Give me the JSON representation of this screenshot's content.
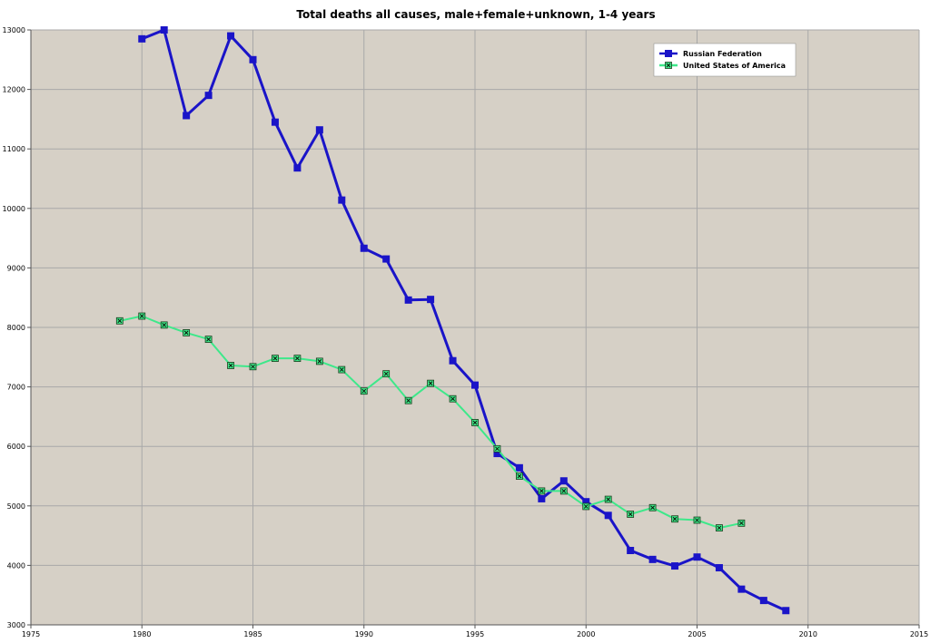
{
  "chart_data": {
    "type": "line",
    "title": "Total deaths all causes, male+female+unknown, 1-4 years",
    "xlabel": "",
    "ylabel": "",
    "xlim": [
      1975,
      2015
    ],
    "ylim": [
      3000,
      13000
    ],
    "xticks": [
      1975,
      1980,
      1985,
      1990,
      1995,
      2000,
      2005,
      2010,
      2015
    ],
    "yticks": [
      3000,
      4000,
      5000,
      6000,
      7000,
      8000,
      9000,
      10000,
      11000,
      12000,
      13000
    ],
    "grid": true,
    "legend_position": "top-right",
    "background_color": "#d6d0c6",
    "series": [
      {
        "name": "Russian Federation",
        "color": "#1a14c8",
        "marker": "square",
        "x": [
          1980,
          1981,
          1982,
          1983,
          1984,
          1985,
          1986,
          1987,
          1988,
          1989,
          1990,
          1991,
          1992,
          1993,
          1994,
          1995,
          1996,
          1997,
          1998,
          1999,
          2000,
          2001,
          2002,
          2003,
          2004,
          2005,
          2006,
          2007,
          2008,
          2009
        ],
        "y": [
          12850,
          13000,
          11560,
          11900,
          12900,
          12500,
          11450,
          10680,
          11320,
          10140,
          9330,
          9150,
          8460,
          8470,
          7440,
          7030,
          5880,
          5640,
          5120,
          5420,
          5070,
          4840,
          4250,
          4100,
          3990,
          4140,
          3960,
          3600,
          3410,
          3240
        ]
      },
      {
        "name": "United States of America",
        "color": "#3ee88a",
        "marker": "square-x",
        "x": [
          1979,
          1980,
          1981,
          1982,
          1983,
          1984,
          1985,
          1986,
          1987,
          1988,
          1989,
          1990,
          1991,
          1992,
          1993,
          1994,
          1995,
          1996,
          1997,
          1998,
          1999,
          2000,
          2001,
          2002,
          2003,
          2004,
          2005,
          2006,
          2007
        ],
        "y": [
          8110,
          8190,
          8040,
          7910,
          7800,
          7360,
          7340,
          7480,
          7480,
          7430,
          7290,
          6930,
          7220,
          6770,
          7060,
          6800,
          6400,
          5960,
          5500,
          5250,
          5250,
          4990,
          5110,
          4860,
          4970,
          4780,
          4760,
          4630,
          4710
        ]
      }
    ]
  }
}
